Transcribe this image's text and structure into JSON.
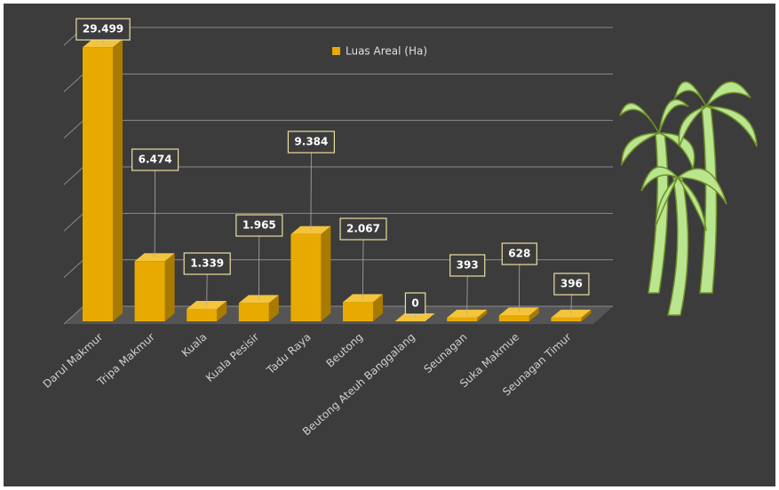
{
  "chart_data": {
    "type": "bar3d",
    "categories": [
      "Darul Makmur",
      "Tripa Makmur",
      "Kuala",
      "Kuala Pesisir",
      "Tadu Raya",
      "Beutong",
      "Beutong Ateuh Banggalang",
      "Seunagan",
      "Suka Makmue",
      "Seunagan Timur"
    ],
    "series": [
      {
        "name": "Luas Areal (Ha)",
        "color": "#e8aa00",
        "values": [
          29499,
          6474,
          1339,
          1965,
          9384,
          2067,
          0,
          393,
          628,
          396
        ],
        "value_labels": [
          "29.499",
          "6.474",
          "1.339",
          "1.965",
          "9.384",
          "2.067",
          "0",
          "393",
          "628",
          "396"
        ]
      }
    ],
    "ylim": [
      0,
      30000
    ],
    "yticks": [
      0,
      5000,
      10000,
      15000,
      20000,
      25000,
      30000
    ],
    "grid": true,
    "legend": "top"
  }
}
